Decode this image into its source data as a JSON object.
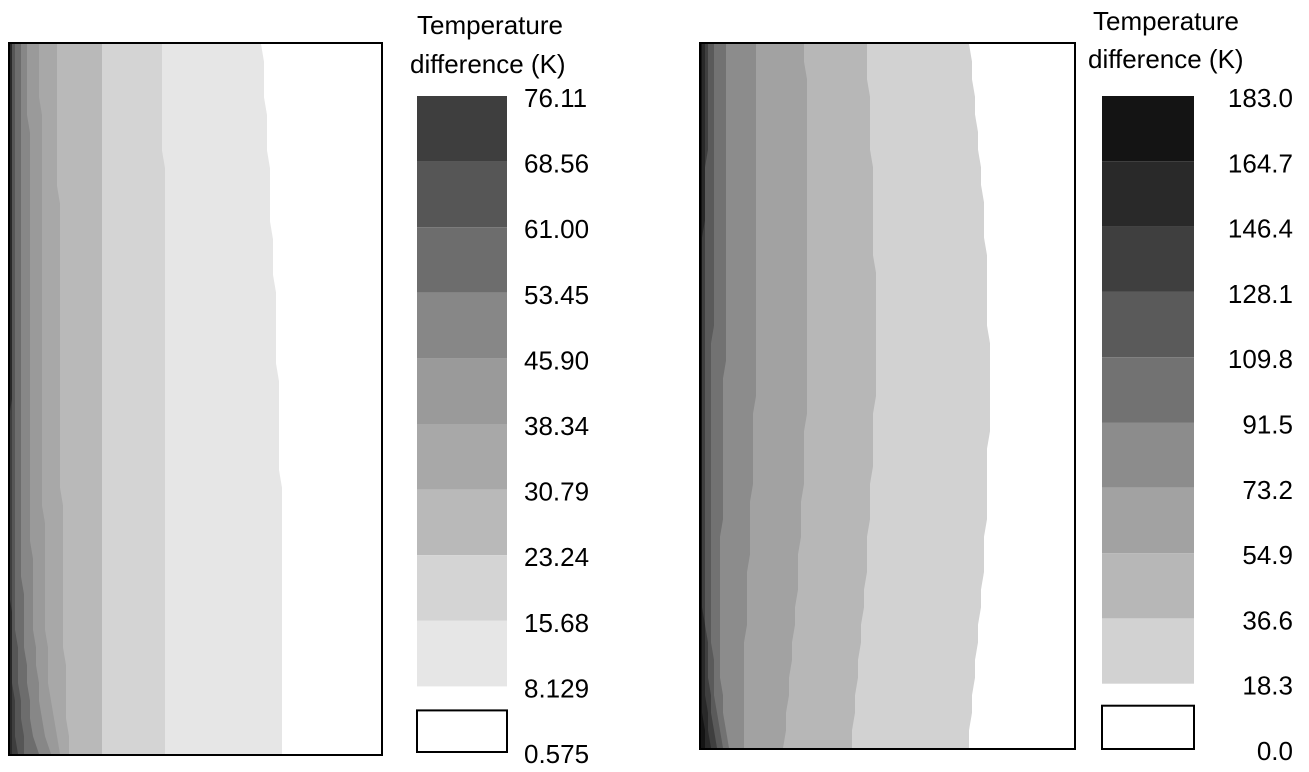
{
  "chart_data": [
    {
      "type": "heatmap",
      "subtype": "filled-contour",
      "legend_title": [
        "Temperature",
        "difference (K)"
      ],
      "legend_placement": "right",
      "levels": [
        "0.575",
        "8.129",
        "15.68",
        "23.24",
        "30.79",
        "38.34",
        "45.90",
        "53.45",
        "61.00",
        "68.56",
        "76.11"
      ],
      "band_colors": [
        "#ffffff",
        "#e6e6e6",
        "#d4d4d4",
        "#b9b9b9",
        "#a8a8a8",
        "#9a9a9a",
        "#878787",
        "#6d6d6d",
        "#565656",
        "#3e3e3e",
        "#282828"
      ],
      "field_description": "Temperature difference decreases from left (hot edge, darkest at bottom-left corner) to right (white)"
    },
    {
      "type": "heatmap",
      "subtype": "filled-contour",
      "legend_title": [
        "Temperature",
        "difference (K)"
      ],
      "legend_placement": "right",
      "levels": [
        "0.0",
        "18.3",
        "36.6",
        "54.9",
        "73.2",
        "91.5",
        "109.8",
        "128.1",
        "146.4",
        "164.7",
        "183.0"
      ],
      "band_colors": [
        "#ffffff",
        "#d2d2d2",
        "#b7b7b7",
        "#a2a2a2",
        "#8c8c8c",
        "#727272",
        "#5a5a5a",
        "#3f3f3f",
        "#292929",
        "#141414"
      ],
      "field_description": "Temperature difference decreases from left (hot edge, darkest at bottom-left corner) to right (white)"
    }
  ]
}
